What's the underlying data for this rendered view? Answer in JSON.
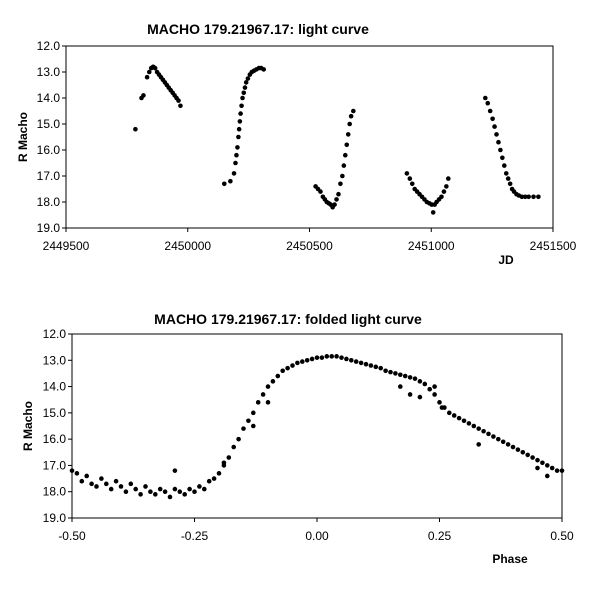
{
  "chart_data": [
    {
      "type": "scatter",
      "title": "MACHO 179.21967.17: light curve",
      "xlabel": "JD",
      "ylabel": "R Macho",
      "xlim": [
        2449500,
        2451500
      ],
      "ylim": [
        12.0,
        19.0
      ],
      "y_inverted": true,
      "x_ticks": [
        "2449500",
        "2450000",
        "2450500",
        "2451000",
        "2451500"
      ],
      "y_ticks": [
        "12.0",
        "13.0",
        "14.0",
        "15.0",
        "16.0",
        "17.0",
        "18.0",
        "19.0"
      ],
      "grid": "none",
      "legend": "none",
      "marker_color": "#000000",
      "series": [
        {
          "values": [
            [
              2449785,
              15.2
            ],
            [
              2449810,
              14.0
            ],
            [
              2449818,
              13.9
            ],
            [
              2449833,
              13.2
            ],
            [
              2449842,
              13.0
            ],
            [
              2449850,
              12.85
            ],
            [
              2449858,
              12.8
            ],
            [
              2449866,
              12.85
            ],
            [
              2449874,
              13.0
            ],
            [
              2449882,
              13.1
            ],
            [
              2449890,
              13.2
            ],
            [
              2449898,
              13.3
            ],
            [
              2449906,
              13.4
            ],
            [
              2449914,
              13.5
            ],
            [
              2449922,
              13.6
            ],
            [
              2449930,
              13.7
            ],
            [
              2449938,
              13.8
            ],
            [
              2449946,
              13.9
            ],
            [
              2449954,
              14.0
            ],
            [
              2449962,
              14.1
            ],
            [
              2449970,
              14.3
            ],
            [
              2450150,
              17.3
            ],
            [
              2450175,
              17.2
            ],
            [
              2450190,
              16.9
            ],
            [
              2450196,
              16.5
            ],
            [
              2450200,
              16.2
            ],
            [
              2450204,
              15.9
            ],
            [
              2450208,
              15.5
            ],
            [
              2450211,
              15.2
            ],
            [
              2450214,
              14.9
            ],
            [
              2450217,
              14.6
            ],
            [
              2450221,
              14.3
            ],
            [
              2450225,
              14.0
            ],
            [
              2450230,
              13.8
            ],
            [
              2450235,
              13.6
            ],
            [
              2450240,
              13.4
            ],
            [
              2450247,
              13.25
            ],
            [
              2450255,
              13.1
            ],
            [
              2450263,
              13.0
            ],
            [
              2450272,
              12.95
            ],
            [
              2450282,
              12.9
            ],
            [
              2450292,
              12.85
            ],
            [
              2450302,
              12.85
            ],
            [
              2450312,
              12.9
            ],
            [
              2450525,
              17.4
            ],
            [
              2450535,
              17.5
            ],
            [
              2450545,
              17.6
            ],
            [
              2450555,
              17.8
            ],
            [
              2450563,
              17.9
            ],
            [
              2450571,
              18.0
            ],
            [
              2450579,
              18.05
            ],
            [
              2450587,
              18.1
            ],
            [
              2450595,
              18.2
            ],
            [
              2450603,
              18.1
            ],
            [
              2450611,
              17.9
            ],
            [
              2450619,
              17.7
            ],
            [
              2450627,
              17.3
            ],
            [
              2450635,
              17.0
            ],
            [
              2450641,
              16.6
            ],
            [
              2450647,
              16.2
            ],
            [
              2450653,
              15.8
            ],
            [
              2450659,
              15.4
            ],
            [
              2450665,
              15.0
            ],
            [
              2450671,
              14.7
            ],
            [
              2450680,
              14.5
            ],
            [
              2450900,
              16.9
            ],
            [
              2450912,
              17.1
            ],
            [
              2450922,
              17.3
            ],
            [
              2450932,
              17.5
            ],
            [
              2450942,
              17.6
            ],
            [
              2450952,
              17.7
            ],
            [
              2450962,
              17.8
            ],
            [
              2450972,
              17.9
            ],
            [
              2450982,
              18.0
            ],
            [
              2450992,
              18.05
            ],
            [
              2451002,
              18.1
            ],
            [
              2451008,
              18.4
            ],
            [
              2451014,
              18.1
            ],
            [
              2451022,
              18.0
            ],
            [
              2451032,
              17.9
            ],
            [
              2451042,
              17.8
            ],
            [
              2451052,
              17.6
            ],
            [
              2451062,
              17.4
            ],
            [
              2451070,
              17.1
            ],
            [
              2451222,
              14.0
            ],
            [
              2451232,
              14.2
            ],
            [
              2451242,
              14.5
            ],
            [
              2451252,
              14.8
            ],
            [
              2451260,
              15.1
            ],
            [
              2451268,
              15.4
            ],
            [
              2451276,
              15.7
            ],
            [
              2451284,
              16.0
            ],
            [
              2451292,
              16.3
            ],
            [
              2451300,
              16.6
            ],
            [
              2451308,
              16.9
            ],
            [
              2451316,
              17.1
            ],
            [
              2451324,
              17.3
            ],
            [
              2451332,
              17.5
            ],
            [
              2451340,
              17.6
            ],
            [
              2451350,
              17.7
            ],
            [
              2451360,
              17.75
            ],
            [
              2451372,
              17.8
            ],
            [
              2451386,
              17.8
            ],
            [
              2451400,
              17.8
            ],
            [
              2451420,
              17.8
            ],
            [
              2451440,
              17.8
            ]
          ]
        }
      ]
    },
    {
      "type": "scatter",
      "title": "MACHO 179.21967.17: folded light curve",
      "xlabel": "Phase",
      "ylabel": "R Macho",
      "xlim": [
        -0.5,
        0.5
      ],
      "ylim": [
        12.0,
        19.0
      ],
      "y_inverted": true,
      "x_ticks": [
        "-0.50",
        "-0.25",
        "0.00",
        "0.25",
        "0.50"
      ],
      "y_ticks": [
        "12.0",
        "13.0",
        "14.0",
        "15.0",
        "16.0",
        "17.0",
        "18.0",
        "19.0"
      ],
      "grid": "none",
      "legend": "none",
      "marker_color": "#000000",
      "series": [
        {
          "values": [
            [
              -0.5,
              17.2
            ],
            [
              -0.49,
              17.3
            ],
            [
              -0.48,
              17.6
            ],
            [
              -0.47,
              17.4
            ],
            [
              -0.46,
              17.7
            ],
            [
              -0.45,
              17.8
            ],
            [
              -0.44,
              17.5
            ],
            [
              -0.43,
              17.7
            ],
            [
              -0.42,
              17.9
            ],
            [
              -0.41,
              17.6
            ],
            [
              -0.4,
              17.8
            ],
            [
              -0.39,
              18.0
            ],
            [
              -0.38,
              17.7
            ],
            [
              -0.37,
              17.9
            ],
            [
              -0.36,
              18.1
            ],
            [
              -0.35,
              17.8
            ],
            [
              -0.34,
              18.0
            ],
            [
              -0.33,
              18.1
            ],
            [
              -0.32,
              17.9
            ],
            [
              -0.31,
              18.0
            ],
            [
              -0.3,
              18.2
            ],
            [
              -0.29,
              17.9
            ],
            [
              -0.28,
              18.0
            ],
            [
              -0.27,
              18.1
            ],
            [
              -0.26,
              17.9
            ],
            [
              -0.25,
              18.0
            ],
            [
              -0.24,
              17.8
            ],
            [
              -0.23,
              17.9
            ],
            [
              -0.22,
              17.6
            ],
            [
              -0.21,
              17.5
            ],
            [
              -0.2,
              17.3
            ],
            [
              -0.19,
              17.0
            ],
            [
              -0.18,
              16.7
            ],
            [
              -0.17,
              16.3
            ],
            [
              -0.16,
              16.0
            ],
            [
              -0.15,
              15.6
            ],
            [
              -0.14,
              15.3
            ],
            [
              -0.13,
              15.0
            ],
            [
              -0.12,
              14.6
            ],
            [
              -0.11,
              14.3
            ],
            [
              -0.1,
              14.0
            ],
            [
              -0.09,
              13.8
            ],
            [
              -0.08,
              13.6
            ],
            [
              -0.07,
              13.4
            ],
            [
              -0.06,
              13.3
            ],
            [
              -0.05,
              13.2
            ],
            [
              -0.04,
              13.1
            ],
            [
              -0.03,
              13.05
            ],
            [
              -0.02,
              13.0
            ],
            [
              -0.01,
              12.95
            ],
            [
              0.0,
              12.9
            ],
            [
              0.01,
              12.9
            ],
            [
              0.02,
              12.85
            ],
            [
              0.03,
              12.85
            ],
            [
              0.04,
              12.85
            ],
            [
              0.05,
              12.9
            ],
            [
              0.06,
              12.95
            ],
            [
              0.07,
              13.0
            ],
            [
              0.08,
              13.05
            ],
            [
              0.09,
              13.1
            ],
            [
              0.1,
              13.15
            ],
            [
              0.11,
              13.2
            ],
            [
              0.12,
              13.25
            ],
            [
              0.13,
              13.3
            ],
            [
              0.14,
              13.4
            ],
            [
              0.15,
              13.45
            ],
            [
              0.16,
              13.5
            ],
            [
              0.17,
              13.55
            ],
            [
              0.18,
              13.6
            ],
            [
              0.19,
              13.65
            ],
            [
              0.2,
              13.7
            ],
            [
              0.21,
              13.8
            ],
            [
              0.22,
              13.9
            ],
            [
              0.23,
              14.1
            ],
            [
              0.24,
              14.3
            ],
            [
              0.25,
              14.6
            ],
            [
              0.26,
              14.8
            ],
            [
              0.27,
              15.0
            ],
            [
              0.28,
              15.1
            ],
            [
              0.29,
              15.2
            ],
            [
              0.3,
              15.3
            ],
            [
              0.31,
              15.4
            ],
            [
              0.32,
              15.5
            ],
            [
              0.33,
              15.6
            ],
            [
              0.34,
              15.7
            ],
            [
              0.35,
              15.8
            ],
            [
              0.36,
              15.9
            ],
            [
              0.37,
              16.0
            ],
            [
              0.38,
              16.1
            ],
            [
              0.39,
              16.2
            ],
            [
              0.4,
              16.3
            ],
            [
              0.41,
              16.4
            ],
            [
              0.42,
              16.5
            ],
            [
              0.43,
              16.6
            ],
            [
              0.44,
              16.7
            ],
            [
              0.45,
              16.8
            ],
            [
              0.46,
              16.9
            ],
            [
              0.47,
              17.0
            ],
            [
              0.48,
              17.1
            ],
            [
              0.49,
              17.2
            ],
            [
              0.5,
              17.2
            ],
            [
              0.17,
              14.0
            ],
            [
              0.19,
              14.3
            ],
            [
              0.21,
              14.4
            ],
            [
              0.24,
              14.0
            ],
            [
              0.255,
              14.8
            ],
            [
              0.33,
              16.2
            ],
            [
              0.45,
              17.1
            ],
            [
              0.47,
              17.4
            ],
            [
              -0.19,
              16.9
            ],
            [
              -0.13,
              15.5
            ],
            [
              -0.1,
              14.6
            ],
            [
              -0.29,
              17.2
            ]
          ]
        }
      ]
    }
  ]
}
